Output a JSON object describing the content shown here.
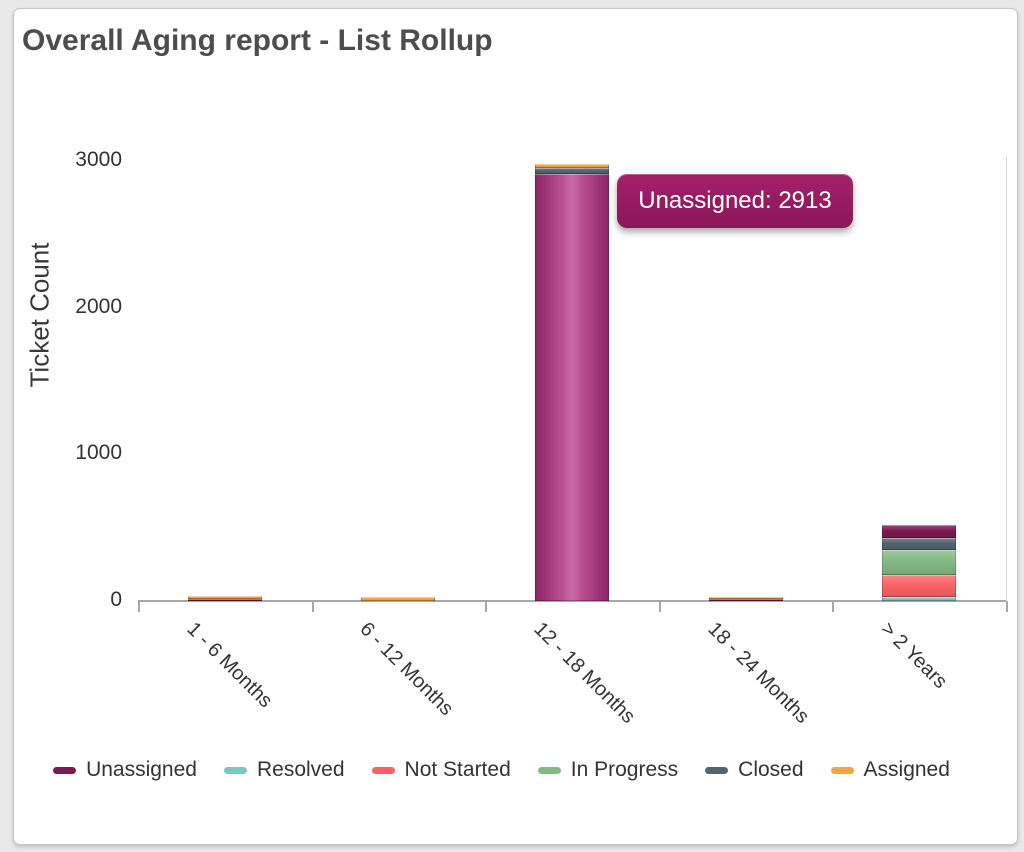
{
  "chart_data": {
    "type": "bar",
    "stacked": true,
    "title": "Overall Aging report - List Rollup",
    "xlabel": "",
    "ylabel": "Ticket Count",
    "ylim": [
      0,
      3000
    ],
    "yticks": [
      0,
      1000,
      2000,
      3000
    ],
    "grid": false,
    "legend_position": "bottom",
    "categories": [
      "1 - 6 Months",
      "6 - 12 Months",
      "12 - 18 Months",
      "18 - 24 Months",
      "> 2 Years"
    ],
    "series": [
      {
        "name": "Unassigned",
        "color": "#7b1a4f",
        "values": [
          14,
          0,
          2913,
          12,
          90
        ]
      },
      {
        "name": "Resolved",
        "color": "#7cc6c4",
        "values": [
          0,
          0,
          0,
          0,
          27
        ]
      },
      {
        "name": "Not Started",
        "color": "#fa6268",
        "values": [
          0,
          0,
          0,
          0,
          150
        ]
      },
      {
        "name": "In Progress",
        "color": "#83b983",
        "values": [
          0,
          0,
          0,
          0,
          170
        ]
      },
      {
        "name": "Closed",
        "color": "#53646f",
        "values": [
          0,
          0,
          40,
          0,
          80
        ]
      },
      {
        "name": "Assigned",
        "color": "#f6a240",
        "values": [
          21,
          27,
          27,
          18,
          0
        ]
      }
    ],
    "stack_orders_bottom_to_top": [
      [
        0,
        5
      ],
      [
        5
      ],
      [
        0,
        4,
        5
      ],
      [
        0,
        5
      ],
      [
        1,
        2,
        3,
        4,
        0
      ]
    ],
    "highlighted_bar": {
      "category": "12 - 18 Months",
      "series": "Unassigned"
    },
    "tooltip": {
      "series": "Unassigned",
      "value": 2913,
      "label": "Unassigned: 2913"
    }
  }
}
